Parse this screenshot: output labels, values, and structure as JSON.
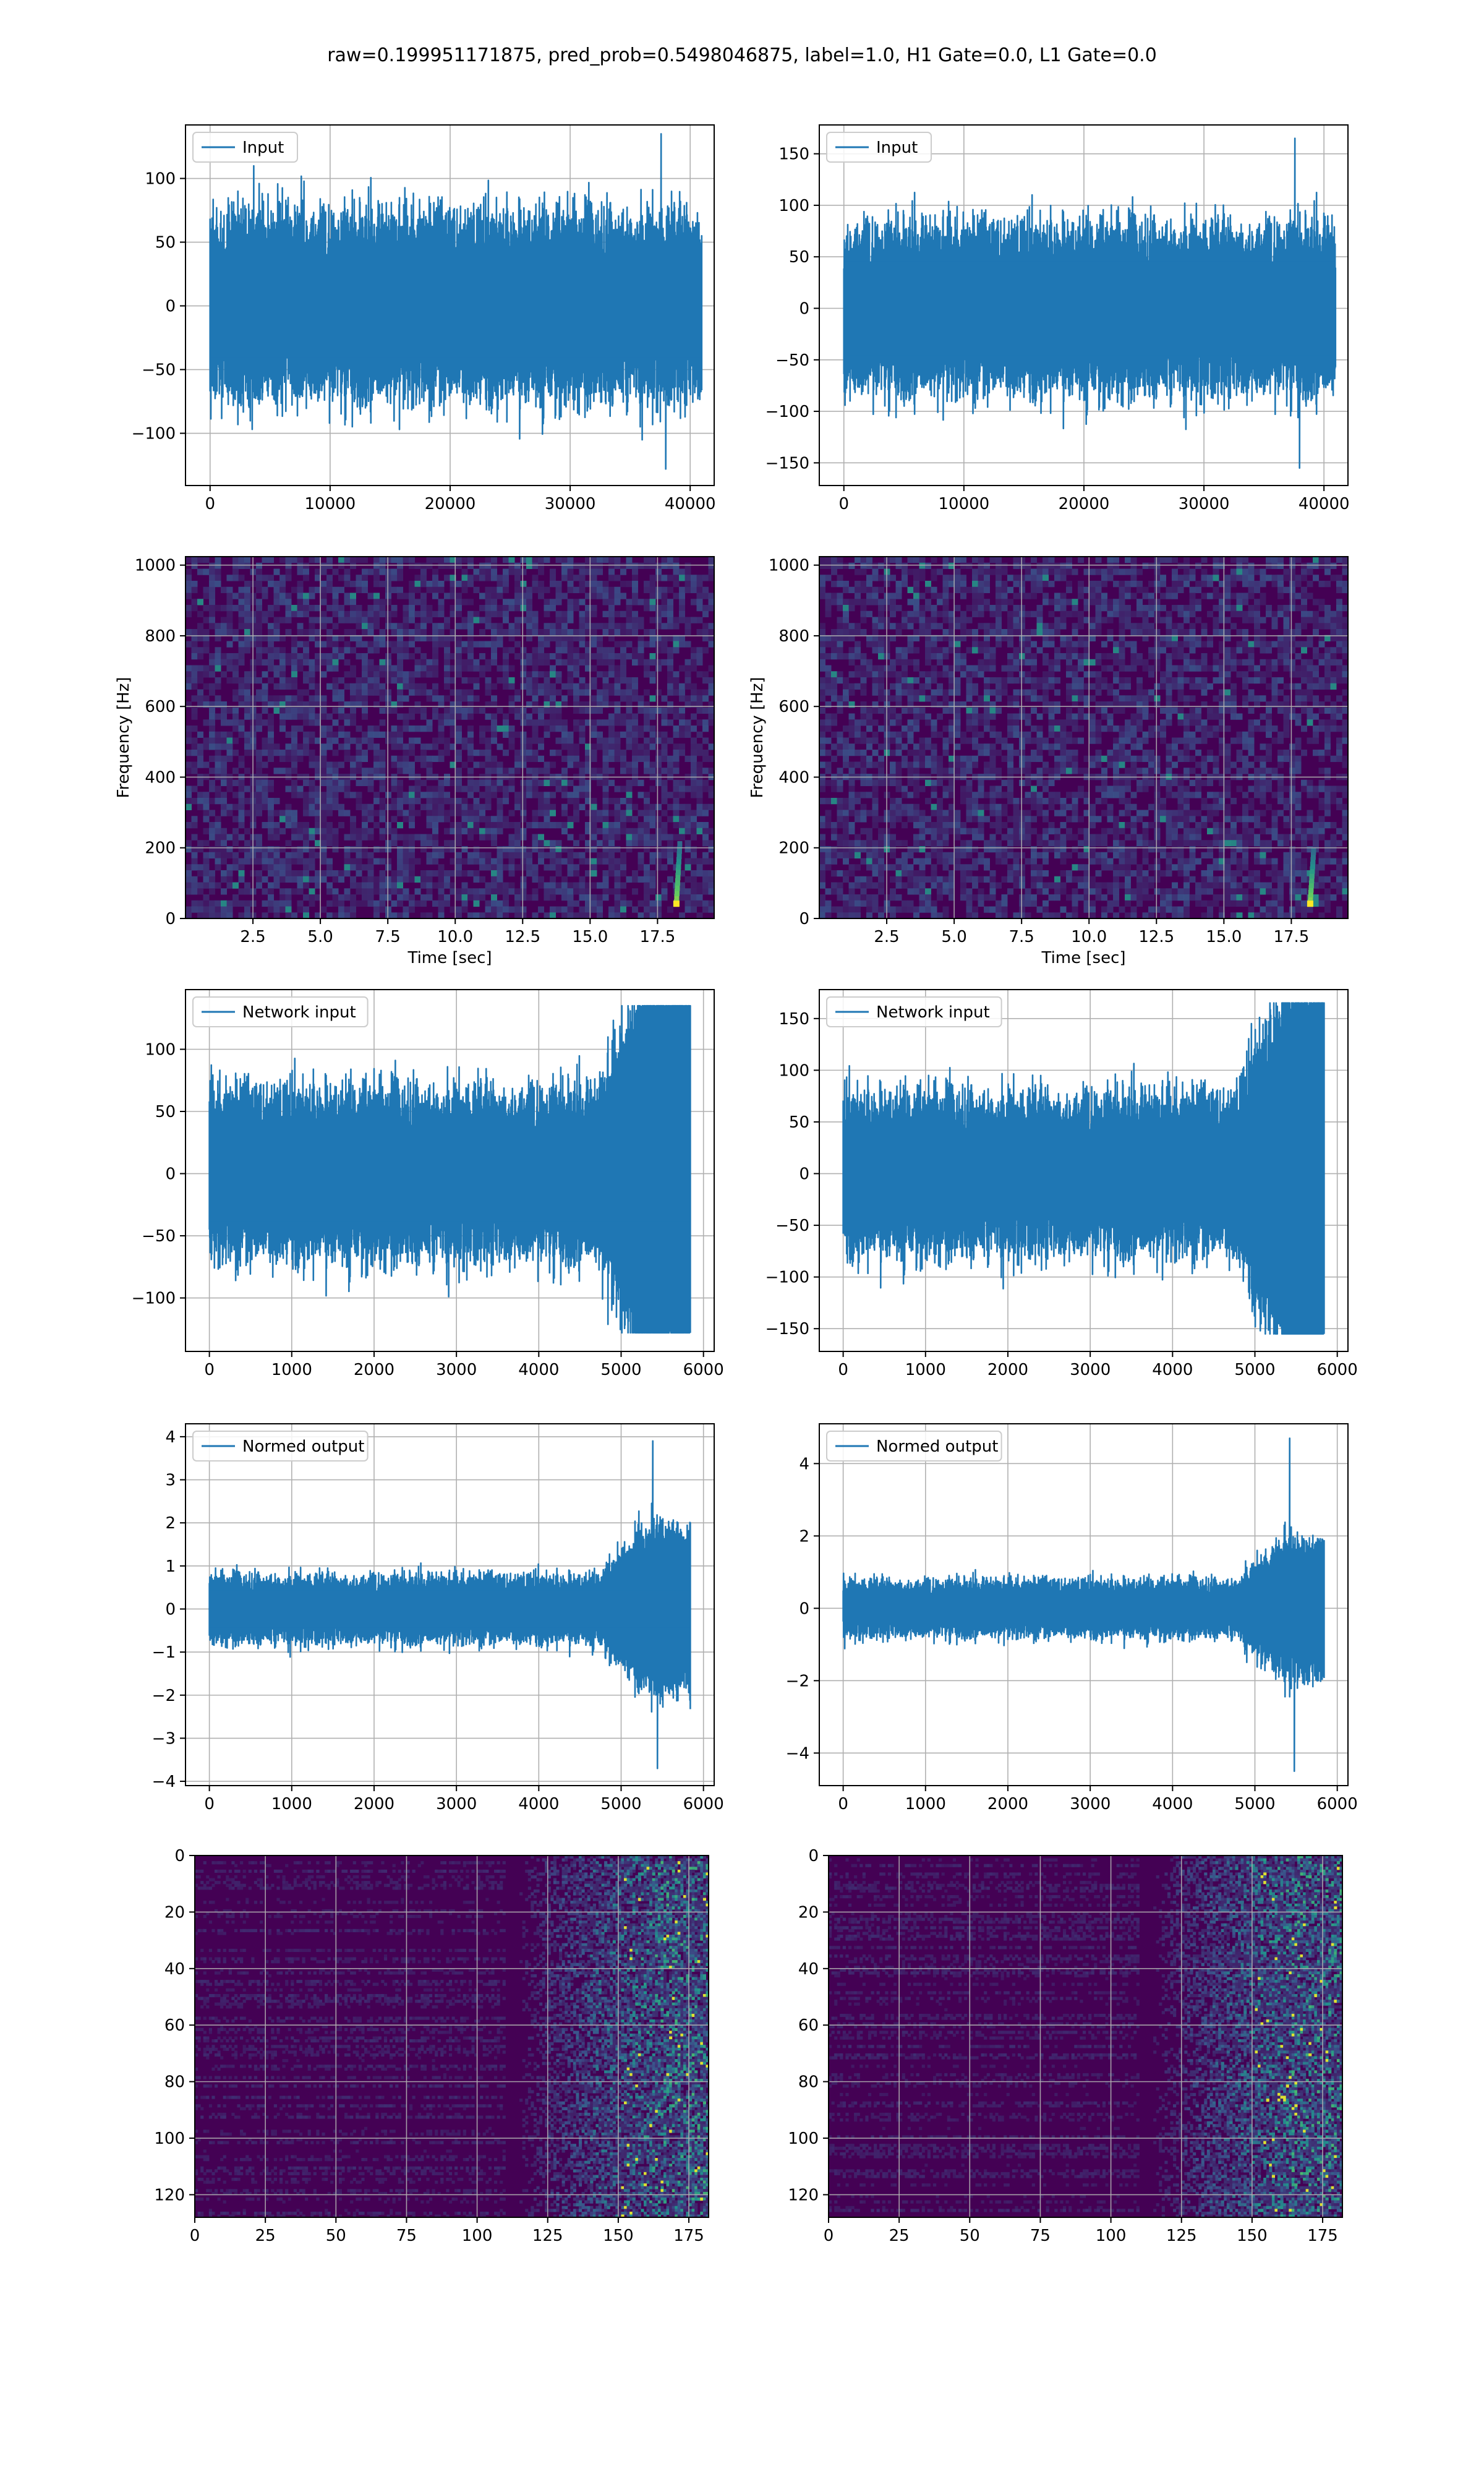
{
  "figure_title": "raw=0.199951171875, pred_prob=0.5498046875, label=1.0, H1 Gate=0.0, L1 Gate=0.0",
  "colors": {
    "line": "#1f77b4",
    "grid": "#b0b0b0",
    "viridis_low": "#440154",
    "viridis_mid": "#21918c",
    "viridis_high": "#fde725"
  },
  "chart_data": [
    {
      "type": "line",
      "id": "input-h1",
      "grid": true,
      "legend_position": "top-left",
      "series": [
        {
          "name": "Input",
          "x_range": [
            0,
            40960
          ],
          "envelope_p99": 85,
          "peaks_max": 135,
          "peaks_min": -128
        }
      ],
      "xlim": [
        -2048,
        42000
      ],
      "ylim": [
        -141,
        142
      ],
      "xticks": [
        0,
        10000,
        20000,
        30000,
        40000
      ],
      "yticks": [
        -100,
        -50,
        0,
        50,
        100
      ],
      "xlabel": "",
      "ylabel": ""
    },
    {
      "type": "line",
      "id": "input-l1",
      "grid": true,
      "legend_position": "top-left",
      "series": [
        {
          "name": "Input",
          "x_range": [
            0,
            40960
          ],
          "envelope_p99": 95,
          "peaks_max": 165,
          "peaks_min": -155
        }
      ],
      "xlim": [
        -2048,
        42000
      ],
      "ylim": [
        -172,
        178
      ],
      "xticks": [
        0,
        10000,
        20000,
        30000,
        40000
      ],
      "yticks": [
        -150,
        -100,
        -50,
        0,
        50,
        100,
        150
      ],
      "xlabel": "",
      "ylabel": ""
    },
    {
      "type": "heatmap",
      "id": "spectrogram-h1",
      "grid": true,
      "colormap": "viridis",
      "xlim": [
        0,
        19.6
      ],
      "ylim": [
        0,
        1024
      ],
      "xticks": [
        2.5,
        5.0,
        7.5,
        10.0,
        12.5,
        15.0,
        17.5
      ],
      "xtick_labels": [
        "2.5",
        "5.0",
        "7.5",
        "10.0",
        "12.5",
        "15.0",
        "17.5"
      ],
      "yticks": [
        0,
        200,
        400,
        600,
        800,
        1000
      ],
      "xlabel": "Time [sec]",
      "ylabel": "Frequency [Hz]",
      "chirp": {
        "t": 18.2,
        "f_from": 40,
        "f_to": 220
      }
    },
    {
      "type": "heatmap",
      "id": "spectrogram-l1",
      "grid": true,
      "colormap": "viridis",
      "xlim": [
        0,
        19.6
      ],
      "ylim": [
        0,
        1024
      ],
      "xticks": [
        2.5,
        5.0,
        7.5,
        10.0,
        12.5,
        15.0,
        17.5
      ],
      "xtick_labels": [
        "2.5",
        "5.0",
        "7.5",
        "10.0",
        "12.5",
        "15.0",
        "17.5"
      ],
      "yticks": [
        0,
        200,
        400,
        600,
        800,
        1000
      ],
      "xlabel": "Time [sec]",
      "ylabel": "Frequency [Hz]",
      "chirp": {
        "t": 18.2,
        "f_from": 40,
        "f_to": 200
      }
    },
    {
      "type": "line",
      "id": "network-input-h1",
      "grid": true,
      "legend_position": "top-left",
      "series": [
        {
          "name": "Network input",
          "x_range": [
            0,
            5840
          ],
          "envelope_p99": 80,
          "peaks_max": 135,
          "peaks_min": -128,
          "merger_at": 5400
        }
      ],
      "xlim": [
        -290,
        6130
      ],
      "ylim": [
        -143,
        148
      ],
      "xticks": [
        0,
        1000,
        2000,
        3000,
        4000,
        5000,
        6000
      ],
      "yticks": [
        -100,
        -50,
        0,
        50,
        100
      ],
      "xlabel": "",
      "ylabel": ""
    },
    {
      "type": "line",
      "id": "network-input-l1",
      "grid": true,
      "legend_position": "top-left",
      "series": [
        {
          "name": "Network input",
          "x_range": [
            0,
            5840
          ],
          "envelope_p99": 90,
          "peaks_max": 165,
          "peaks_min": -155,
          "merger_at": 5440
        }
      ],
      "xlim": [
        -290,
        6130
      ],
      "ylim": [
        -172,
        178
      ],
      "xticks": [
        0,
        1000,
        2000,
        3000,
        4000,
        5000,
        6000
      ],
      "yticks": [
        -150,
        -100,
        -50,
        0,
        50,
        100,
        150
      ],
      "xlabel": "",
      "ylabel": ""
    },
    {
      "type": "line",
      "id": "normed-output-h1",
      "grid": true,
      "legend_position": "top-left",
      "series": [
        {
          "name": "Normed output",
          "x_range": [
            0,
            5840
          ],
          "envelope_p99": 0.9,
          "peaks_max": 3.9,
          "peaks_min": -3.7,
          "merger_at": 5400
        }
      ],
      "xlim": [
        -290,
        6130
      ],
      "ylim": [
        -4.1,
        4.3
      ],
      "xticks": [
        0,
        1000,
        2000,
        3000,
        4000,
        5000,
        6000
      ],
      "yticks": [
        -4,
        -3,
        -2,
        -1,
        0,
        1,
        2,
        3,
        4
      ],
      "xlabel": "",
      "ylabel": ""
    },
    {
      "type": "line",
      "id": "normed-output-l1",
      "grid": true,
      "legend_position": "top-left",
      "series": [
        {
          "name": "Normed output",
          "x_range": [
            0,
            5840
          ],
          "envelope_p99": 0.9,
          "peaks_max": 4.7,
          "peaks_min": -4.5,
          "merger_at": 5440
        }
      ],
      "xlim": [
        -290,
        6130
      ],
      "ylim": [
        -4.9,
        5.1
      ],
      "xticks": [
        0,
        1000,
        2000,
        3000,
        4000,
        5000,
        6000
      ],
      "yticks": [
        -4,
        -2,
        0,
        2,
        4
      ],
      "xlabel": "",
      "ylabel": ""
    },
    {
      "type": "heatmap",
      "id": "feature-map-h1",
      "grid": true,
      "colormap": "viridis",
      "xlim": [
        0,
        182
      ],
      "ylim": [
        128,
        0
      ],
      "xticks": [
        0,
        25,
        50,
        75,
        100,
        125,
        150,
        175
      ],
      "yticks": [
        0,
        20,
        40,
        60,
        80,
        100,
        120
      ],
      "xlabel": "",
      "ylabel": "",
      "activation_starts_at": 125
    },
    {
      "type": "heatmap",
      "id": "feature-map-l1",
      "grid": true,
      "colormap": "viridis",
      "xlim": [
        0,
        182
      ],
      "ylim": [
        128,
        0
      ],
      "xticks": [
        0,
        25,
        50,
        75,
        100,
        125,
        150,
        175
      ],
      "yticks": [
        0,
        20,
        40,
        60,
        80,
        100,
        120
      ],
      "xlabel": "",
      "ylabel": "",
      "activation_starts_at": 125
    }
  ]
}
